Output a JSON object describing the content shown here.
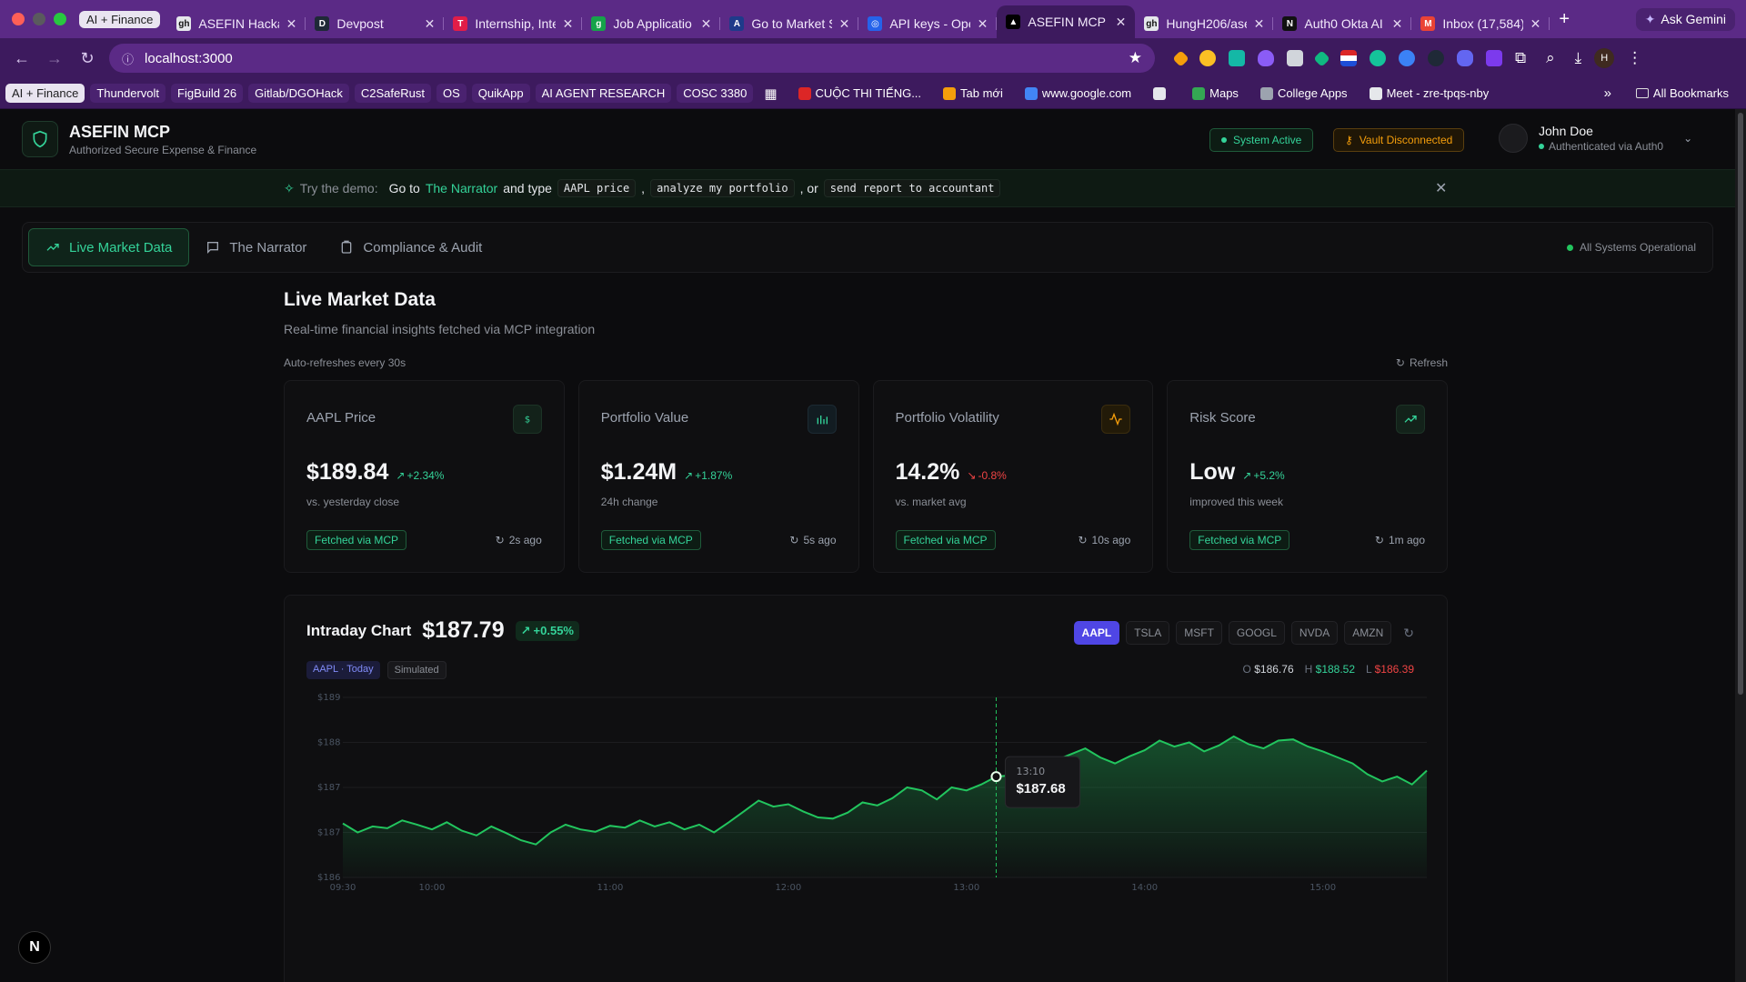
{
  "browser": {
    "group_chip": "AI + Finance",
    "tabs": [
      {
        "title": "ASEFIN Hackat",
        "fav": "gh",
        "fav_color": "#e5e7eb"
      },
      {
        "title": "Devpost",
        "fav": "D",
        "fav_color": "#1f2937"
      },
      {
        "title": "Internship, Inte",
        "fav": "T",
        "fav_color": "#e11d48"
      },
      {
        "title": "Job Applicatio",
        "fav": "g",
        "fav_color": "#16a34a"
      },
      {
        "title": "Go to Market S",
        "fav": "A",
        "fav_color": "#1e3a8a"
      },
      {
        "title": "API keys - Ope",
        "fav": "◎",
        "fav_color": "#2563eb"
      },
      {
        "title": "ASEFIN MCP -",
        "fav": "▲",
        "fav_color": "#000000"
      },
      {
        "title": "HungH206/ase",
        "fav": "gh",
        "fav_color": "#e5e7eb"
      },
      {
        "title": "Auth0 Okta AI",
        "fav": "N",
        "fav_color": "#111111"
      },
      {
        "title": "Inbox (17,584)",
        "fav": "M",
        "fav_color": "#ea4335"
      }
    ],
    "new_tab": "+",
    "ask_gemini": "Ask Gemini",
    "url": "localhost:3000",
    "bookmarks": [
      "AI + Finance",
      "Thundervolt",
      "FigBuild 26",
      "Gitlab/DGOHack",
      "C2SafeRust",
      "OS",
      "QuikApp",
      "AI AGENT RESEARCH",
      "COSC 3380"
    ],
    "bookmarks_plain": [
      {
        "label": "CUỘC THI TIẾNG...",
        "color": "#dc2626"
      },
      {
        "label": "Tab mới",
        "color": "#f59e0b"
      },
      {
        "label": "www.google.com",
        "color": "#4285f4"
      },
      {
        "label": "",
        "color": "#e5e7eb"
      },
      {
        "label": "Maps",
        "color": "#34a853"
      },
      {
        "label": "College Apps",
        "color": "#9ca3af"
      },
      {
        "label": "Meet - zre-tpqs-nby",
        "color": "#e5e7eb"
      }
    ],
    "more": "»",
    "all_bookmarks": "All Bookmarks",
    "profile_initial": "H"
  },
  "header": {
    "title": "ASEFIN MCP",
    "subtitle": "Authorized Secure Expense & Finance",
    "system_status": "System Active",
    "vault_status": "Vault Disconnected",
    "user_name": "John Doe",
    "user_auth": "Authenticated via Auth0"
  },
  "banner": {
    "prefix": "Try the demo:",
    "goto": "Go to",
    "link": "The Narrator",
    "and_type": "and type",
    "cmd1": "AAPL price",
    "sep1": ",",
    "cmd2": "analyze my portfolio",
    "sep2": ", or",
    "cmd3": "send report to accountant"
  },
  "tabs": {
    "live": "Live Market Data",
    "narrator": "The Narrator",
    "compliance": "Compliance & Audit",
    "ops_status": "All Systems Operational"
  },
  "main": {
    "title": "Live Market Data",
    "lead": "Real-time financial insights fetched via MCP integration",
    "auto_refresh": "Auto-refreshes every 30s",
    "refresh": "Refresh"
  },
  "cards": [
    {
      "title": "AAPL Price",
      "value": "$189.84",
      "change": "+2.34%",
      "direction": "up",
      "note": "vs. yesterday close",
      "fetched": "Fetched via MCP",
      "ago": "2s ago",
      "icon": "dollar-icon"
    },
    {
      "title": "Portfolio Value",
      "value": "$1.24M",
      "change": "+1.87%",
      "direction": "up",
      "note": "24h change",
      "fetched": "Fetched via MCP",
      "ago": "5s ago",
      "icon": "bar-chart-icon"
    },
    {
      "title": "Portfolio Volatility",
      "value": "14.2%",
      "change": "-0.8%",
      "direction": "down",
      "note": "vs. market avg",
      "fetched": "Fetched via MCP",
      "ago": "10s ago",
      "icon": "activity-icon"
    },
    {
      "title": "Risk Score",
      "value": "Low",
      "change": "+5.2%",
      "direction": "up",
      "note": "improved this week",
      "fetched": "Fetched via MCP",
      "ago": "1m ago",
      "icon": "trending-up-icon"
    }
  ],
  "chart": {
    "label": "Intraday Chart",
    "price": "$187.79",
    "change": "+0.55%",
    "badge_symbol": "AAPL · Today",
    "badge_mode": "Simulated",
    "tickers": [
      "AAPL",
      "TSLA",
      "MSFT",
      "GOOGL",
      "NVDA",
      "AMZN"
    ],
    "active_ticker": "AAPL",
    "ohlc": {
      "o_label": "O",
      "o": "$186.76",
      "h_label": "H",
      "h": "$188.52",
      "l_label": "L",
      "l": "$186.39"
    },
    "tooltip_time": "13:10",
    "tooltip_price": "$187.68"
  },
  "chart_data": {
    "type": "area",
    "title": "Intraday Chart",
    "x": [
      "09:30",
      "09:35",
      "09:40",
      "09:45",
      "09:50",
      "09:55",
      "10:00",
      "10:05",
      "10:10",
      "10:15",
      "10:20",
      "10:25",
      "10:30",
      "10:35",
      "10:40",
      "10:45",
      "10:50",
      "10:55",
      "11:00",
      "11:05",
      "11:10",
      "11:15",
      "11:20",
      "11:25",
      "11:30",
      "11:35",
      "11:40",
      "11:45",
      "11:50",
      "11:55",
      "12:00",
      "12:05",
      "12:10",
      "12:15",
      "12:20",
      "12:25",
      "12:30",
      "12:35",
      "12:40",
      "12:45",
      "12:50",
      "12:55",
      "13:00",
      "13:05",
      "13:10",
      "13:15",
      "13:20",
      "13:25",
      "13:30",
      "13:35",
      "13:40",
      "13:45",
      "13:50",
      "13:55",
      "14:00",
      "14:05",
      "14:10",
      "14:15",
      "14:20",
      "14:25",
      "14:30",
      "14:35",
      "14:40",
      "14:45",
      "14:50",
      "14:55",
      "15:00",
      "15:05",
      "15:10",
      "15:15",
      "15:20",
      "15:25",
      "15:30",
      "15:35"
    ],
    "series": [
      {
        "values": [
          186.9,
          186.75,
          186.85,
          186.82,
          186.95,
          186.88,
          186.8,
          186.92,
          186.78,
          186.7,
          186.85,
          186.74,
          186.62,
          186.55,
          186.75,
          186.88,
          186.8,
          186.76,
          186.86,
          186.83,
          186.95,
          186.85,
          186.92,
          186.8,
          186.88,
          186.75,
          186.92,
          187.1,
          187.28,
          187.18,
          187.22,
          187.1,
          187.0,
          186.98,
          187.08,
          187.25,
          187.2,
          187.32,
          187.5,
          187.45,
          187.3,
          187.5,
          187.45,
          187.55,
          187.68,
          187.7,
          187.85,
          187.82,
          187.95,
          188.05,
          188.15,
          188.0,
          187.9,
          188.02,
          188.12,
          188.28,
          188.18,
          188.25,
          188.1,
          188.2,
          188.35,
          188.22,
          188.15,
          188.28,
          188.3,
          188.18,
          188.1,
          188.0,
          187.9,
          187.72,
          187.6,
          187.68,
          187.55,
          187.78
        ]
      }
    ],
    "ylabel": "",
    "ytick_labels": [
      "$186",
      "$187",
      "$187",
      "$188",
      "$189"
    ],
    "xtick_labels": [
      "09:30",
      "10:00",
      "11:00",
      "12:00",
      "13:00",
      "14:00",
      "15:00"
    ],
    "ylim": [
      186.0,
      189.0
    ],
    "grid": true,
    "line_color": "#22c55e"
  },
  "colors": {
    "accent": "#34d399",
    "up": "#34d399",
    "down": "#ef4444",
    "active_ticker": "#4f46e5",
    "vault": "#f59e0b"
  },
  "next_badge": "N"
}
